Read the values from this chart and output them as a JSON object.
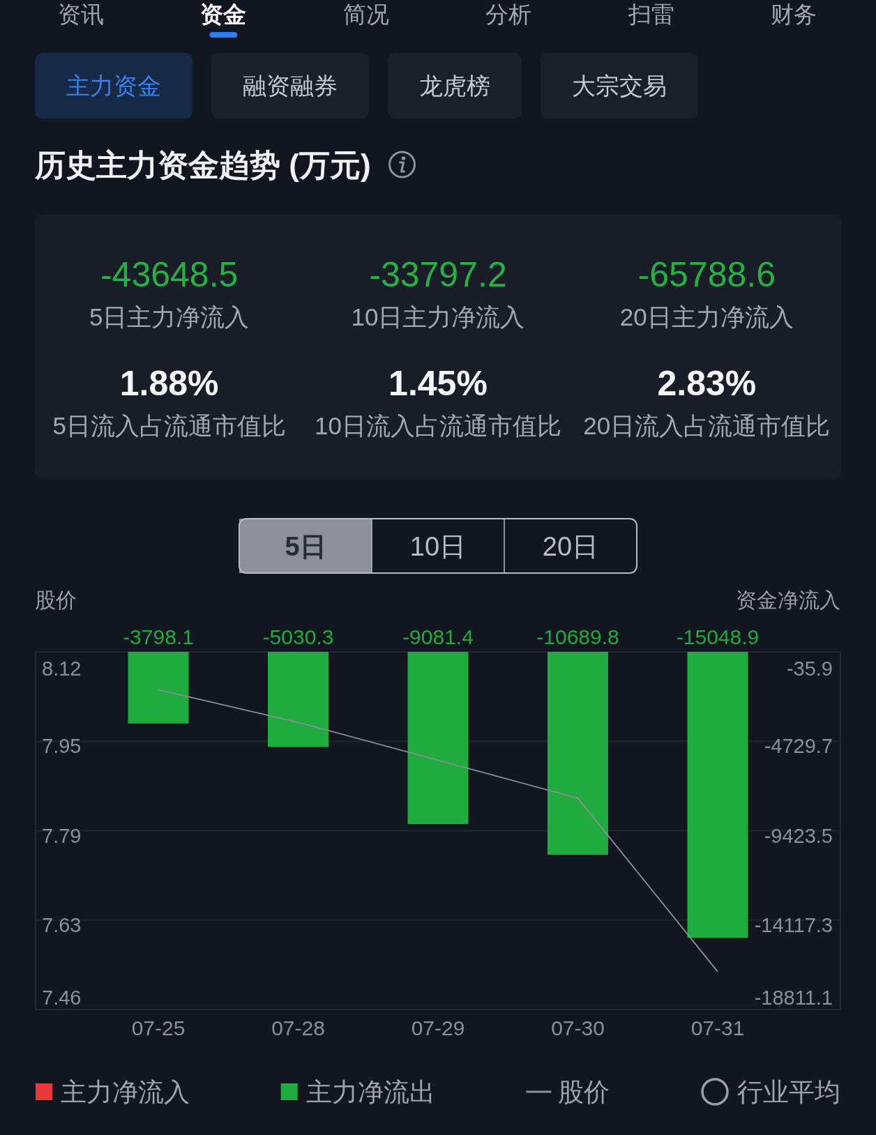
{
  "chart_data": [
    {
      "type": "other",
      "annotations": [
        "资讯",
        "资金",
        "简况",
        "分析",
        "扫雷",
        "财务"
      ]
    },
    {
      "type": "other",
      "annotations": [
        "主力资金",
        "融资融券",
        "龙虎榜",
        "大宗交易"
      ]
    },
    {
      "type": "other",
      "title": "历史主力资金趋势 (万元)",
      "annotations": [
        "-43648.5",
        "5日主力净流入",
        "-33797.2",
        "10日主力净流入",
        "-65788.6",
        "20日主力净流入",
        "1.88%",
        "5日流入占流通市值比",
        "1.45%",
        "10日流入占流通市值比",
        "2.83%",
        "20日流入占流通市值比"
      ]
    },
    {
      "type": "bar",
      "annotations": [
        "5日",
        "10日",
        "20日"
      ],
      "ylabel": "股价",
      "y2label": "资金净流入",
      "categories": [
        "07-25",
        "07-28",
        "07-29",
        "07-30",
        "07-31"
      ],
      "series": [
        {
          "name": "主力净流入",
          "type": "bar",
          "axis": "y2",
          "color": "#e8383a",
          "values": [
            null,
            null,
            null,
            null,
            null
          ]
        },
        {
          "name": "主力净流出",
          "type": "bar",
          "axis": "y2",
          "color": "#1fab3e",
          "values": [
            -3798.1,
            -5030.3,
            -9081.4,
            -10689.8,
            -15048.9
          ],
          "value_labels": [
            "-3798.1",
            "-5030.3",
            "-9081.4",
            "-10689.8",
            "-15048.9"
          ]
        },
        {
          "name": "股价",
          "type": "line",
          "color": "#8c8f97",
          "values": [
            8.05,
            7.99,
            7.92,
            7.85,
            7.53
          ]
        },
        {
          "name": "行业平均",
          "type": "scatter",
          "color": "#9aa0ab",
          "values": [
            null,
            null,
            null,
            null,
            null
          ]
        }
      ],
      "stacked": true,
      "ylim": [
        7.46,
        8.12
      ],
      "yticks": [
        8.12,
        {
          "value": 7.955,
          "label": "7.95"
        },
        7.79,
        {
          "value": 7.625,
          "label": "7.63"
        },
        7.46
      ],
      "y2lim": [
        -18811.1,
        -35.9
      ],
      "y2ticks": [
        -35.9,
        -4729.7,
        -9423.5,
        -14117.3,
        -18811.1
      ],
      "grid": "y",
      "legend": "bottom"
    }
  ]
}
